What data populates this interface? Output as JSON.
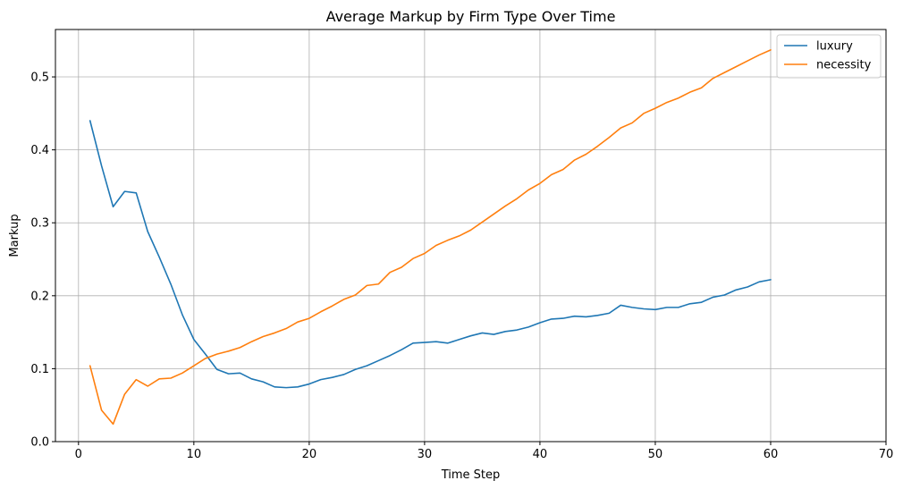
{
  "chart_data": {
    "type": "line",
    "title": "Average Markup by Firm Type Over Time",
    "xlabel": "Time Step",
    "ylabel": "Markup",
    "xlim": [
      -2,
      70
    ],
    "ylim": [
      0.0,
      0.565
    ],
    "xticks": [
      0,
      10,
      20,
      30,
      40,
      50,
      60,
      70
    ],
    "yticks": [
      0.0,
      0.1,
      0.2,
      0.3,
      0.4,
      0.5
    ],
    "grid": true,
    "legend_position": "top-right",
    "series": [
      {
        "name": "luxury",
        "color": "#1f77b4",
        "x": [
          1,
          2,
          3,
          4,
          5,
          6,
          7,
          8,
          9,
          10,
          11,
          12,
          13,
          14,
          15,
          16,
          17,
          18,
          19,
          20,
          21,
          22,
          23,
          24,
          25,
          26,
          27,
          28,
          29,
          30,
          31,
          32,
          33,
          34,
          35,
          36,
          37,
          38,
          39,
          40,
          41,
          42,
          43,
          44,
          45,
          46,
          47,
          48,
          49,
          50,
          51,
          52,
          53,
          54,
          55,
          56,
          57,
          58,
          59,
          60
        ],
        "values": [
          0.44,
          0.378,
          0.322,
          0.343,
          0.341,
          0.288,
          0.253,
          0.216,
          0.174,
          0.14,
          0.12,
          0.099,
          0.093,
          0.094,
          0.086,
          0.082,
          0.075,
          0.074,
          0.075,
          0.079,
          0.085,
          0.088,
          0.092,
          0.099,
          0.104,
          0.111,
          0.118,
          0.126,
          0.135,
          0.136,
          0.137,
          0.135,
          0.14,
          0.145,
          0.149,
          0.147,
          0.151,
          0.153,
          0.157,
          0.163,
          0.168,
          0.169,
          0.172,
          0.171,
          0.173,
          0.176,
          0.187,
          0.184,
          0.182,
          0.181,
          0.184,
          0.184,
          0.189,
          0.191,
          0.198,
          0.201,
          0.208,
          0.212,
          0.219,
          0.222
        ]
      },
      {
        "name": "necessity",
        "color": "#ff7f0e",
        "x": [
          1,
          2,
          3,
          4,
          5,
          6,
          7,
          8,
          9,
          10,
          11,
          12,
          13,
          14,
          15,
          16,
          17,
          18,
          19,
          20,
          21,
          22,
          23,
          24,
          25,
          26,
          27,
          28,
          29,
          30,
          31,
          32,
          33,
          34,
          35,
          36,
          37,
          38,
          39,
          40,
          41,
          42,
          43,
          44,
          45,
          46,
          47,
          48,
          49,
          50,
          51,
          52,
          53,
          54,
          55,
          56,
          57,
          58,
          59,
          60
        ],
        "values": [
          0.104,
          0.043,
          0.024,
          0.065,
          0.085,
          0.076,
          0.086,
          0.087,
          0.094,
          0.104,
          0.114,
          0.12,
          0.124,
          0.129,
          0.137,
          0.144,
          0.149,
          0.155,
          0.164,
          0.169,
          0.178,
          0.186,
          0.195,
          0.201,
          0.214,
          0.216,
          0.232,
          0.239,
          0.251,
          0.258,
          0.269,
          0.276,
          0.282,
          0.29,
          0.301,
          0.312,
          0.323,
          0.333,
          0.345,
          0.354,
          0.366,
          0.373,
          0.386,
          0.394,
          0.405,
          0.417,
          0.43,
          0.437,
          0.45,
          0.457,
          0.465,
          0.471,
          0.479,
          0.485,
          0.498,
          0.506,
          0.514,
          0.522,
          0.53,
          0.537
        ]
      }
    ]
  }
}
